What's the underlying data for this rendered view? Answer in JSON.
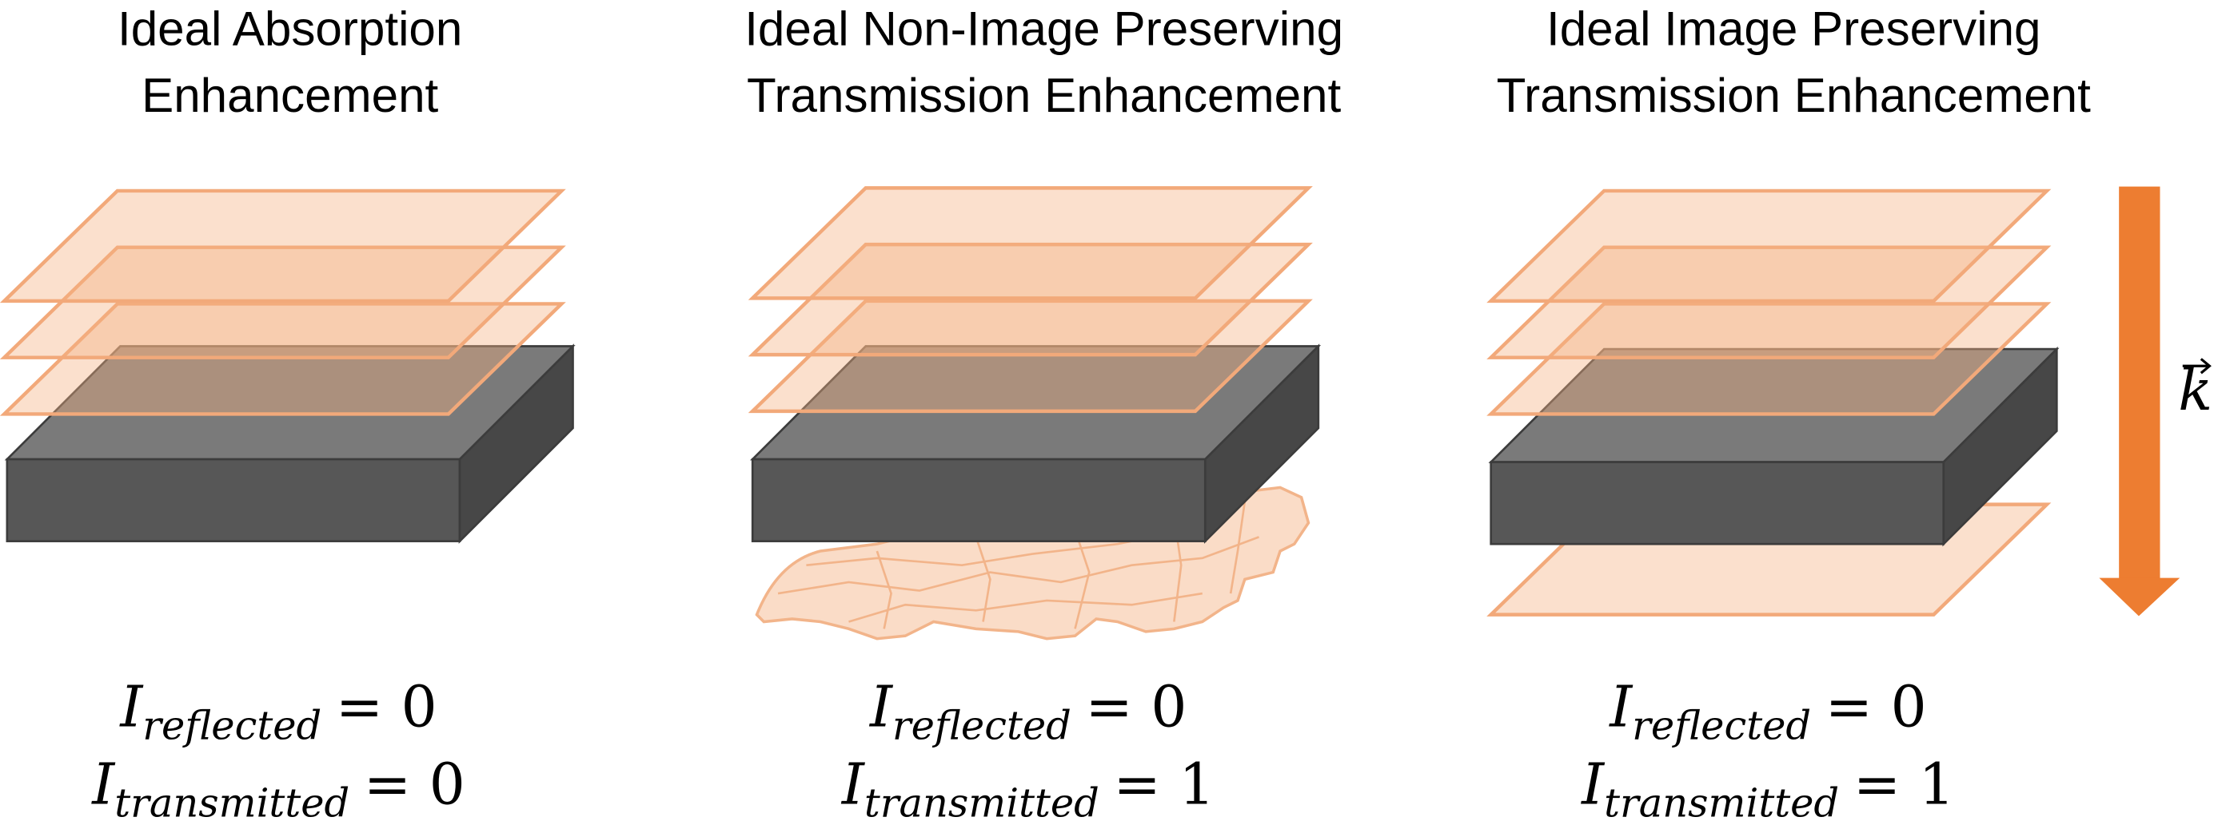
{
  "panels": [
    {
      "title": [
        "Ideal Absorption",
        "Enhancement"
      ],
      "equations": [
        {
          "symbol": "I",
          "subscript": "reflected",
          "rhs": "= 0"
        },
        {
          "symbol": "I",
          "subscript": "transmitted",
          "rhs": "= 0"
        }
      ]
    },
    {
      "title": [
        "Ideal Non-Image Preserving",
        "Transmission Enhancement"
      ],
      "equations": [
        {
          "symbol": "I",
          "subscript": "reflected",
          "rhs": "= 0"
        },
        {
          "symbol": "I",
          "subscript": "transmitted",
          "rhs": "= 1"
        }
      ]
    },
    {
      "title": [
        "Ideal Image Preserving",
        "Transmission Enhancement"
      ],
      "equations": [
        {
          "symbol": "I",
          "subscript": "reflected",
          "rhs": "= 0"
        },
        {
          "symbol": "I",
          "subscript": "transmitted",
          "rhs": "= 1"
        }
      ]
    }
  ],
  "arrow_label": "k"
}
